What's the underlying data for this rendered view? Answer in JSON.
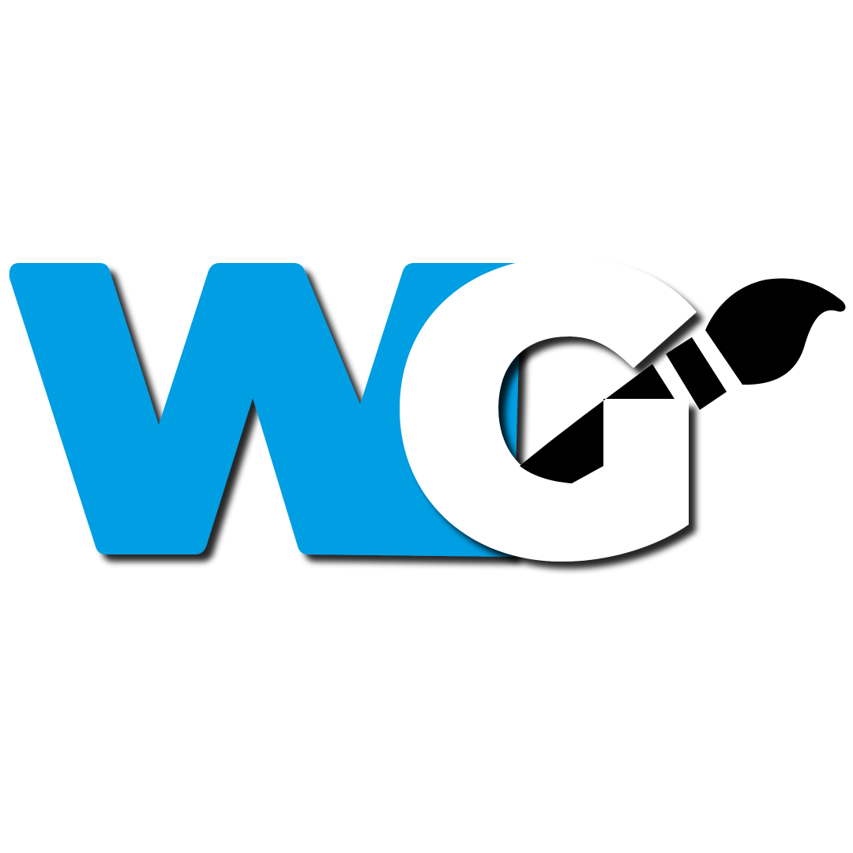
{
  "logo": {
    "monogram": "WG",
    "icon": "paintbrush-icon",
    "colors": {
      "letter_w": "#009ee3",
      "letter_g": "#ffffff",
      "brush": "#000000",
      "shadow": "#000000",
      "background": "#ffffff"
    }
  }
}
